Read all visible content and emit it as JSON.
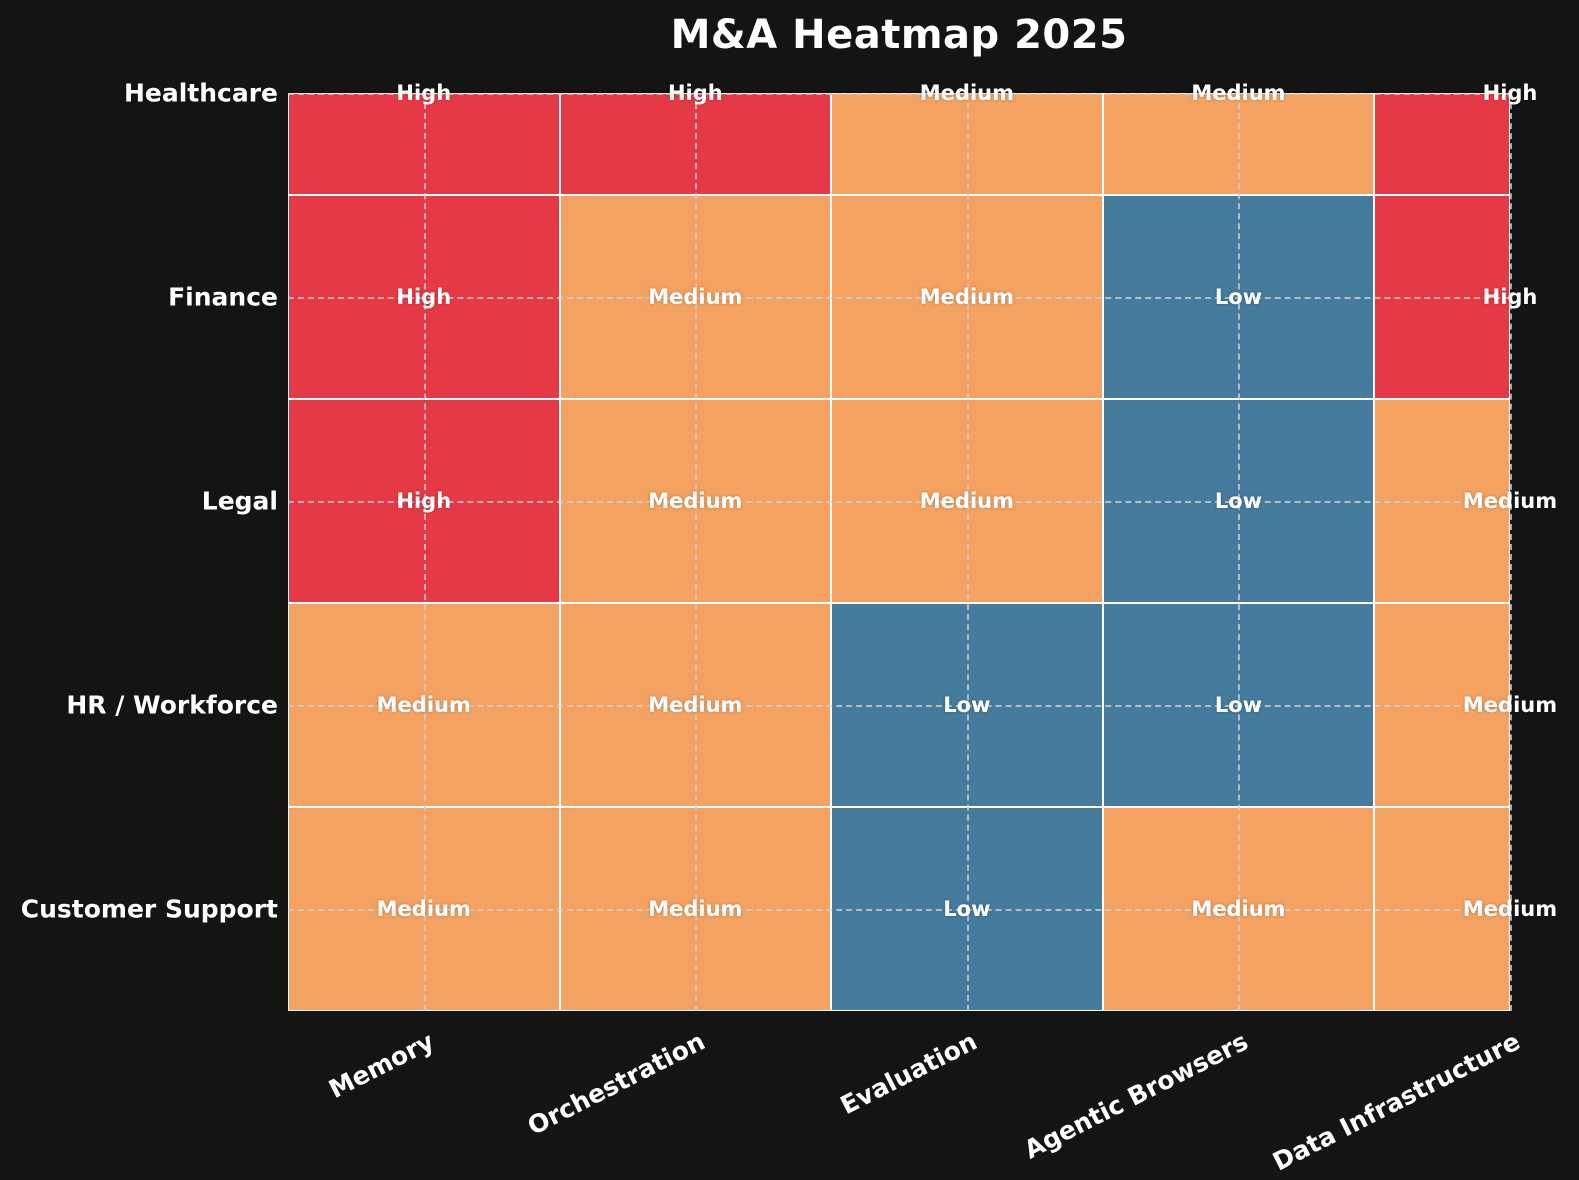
{
  "title": "M&A Heatmap 2025",
  "colors": {
    "background": "#141414",
    "text": "#ffffff",
    "cell_border": "#ffffff",
    "gridline": "#cecece",
    "levels": {
      "High": "#e63946",
      "Medium": "#f4a261",
      "Low": "#457b9d"
    }
  },
  "chart_data": {
    "type": "heatmap",
    "title": "M&A Heatmap 2025",
    "rows": [
      "Healthcare",
      "Finance",
      "Legal",
      "HR / Workforce",
      "Customer Support"
    ],
    "columns": [
      "Memory",
      "Orchestration",
      "Evaluation",
      "Agentic Browsers",
      "Data Infrastructure"
    ],
    "values": [
      [
        "High",
        "High",
        "Medium",
        "Medium",
        "High"
      ],
      [
        "High",
        "Medium",
        "Medium",
        "Low",
        "High"
      ],
      [
        "High",
        "Medium",
        "Medium",
        "Low",
        "Medium"
      ],
      [
        "Medium",
        "Medium",
        "Low",
        "Low",
        "Medium"
      ],
      [
        "Medium",
        "Medium",
        "Low",
        "Medium",
        "Medium"
      ]
    ],
    "numeric_values": [
      [
        3,
        3,
        2,
        2,
        3
      ],
      [
        3,
        2,
        2,
        1,
        3
      ],
      [
        3,
        2,
        2,
        1,
        2
      ],
      [
        2,
        2,
        1,
        1,
        2
      ],
      [
        2,
        2,
        1,
        2,
        2
      ]
    ],
    "level_scale": {
      "Low": 1,
      "Medium": 2,
      "High": 3
    },
    "level_colors": {
      "High": "#e63946",
      "Medium": "#f4a261",
      "Low": "#457b9d"
    },
    "layout": {
      "grid": "dashed lines through cell centers",
      "first_row_half_height": true,
      "last_column_half_width": true,
      "x_label_rotation_deg": -27,
      "cell_text_color": "#ffffff",
      "legend": "none"
    }
  }
}
